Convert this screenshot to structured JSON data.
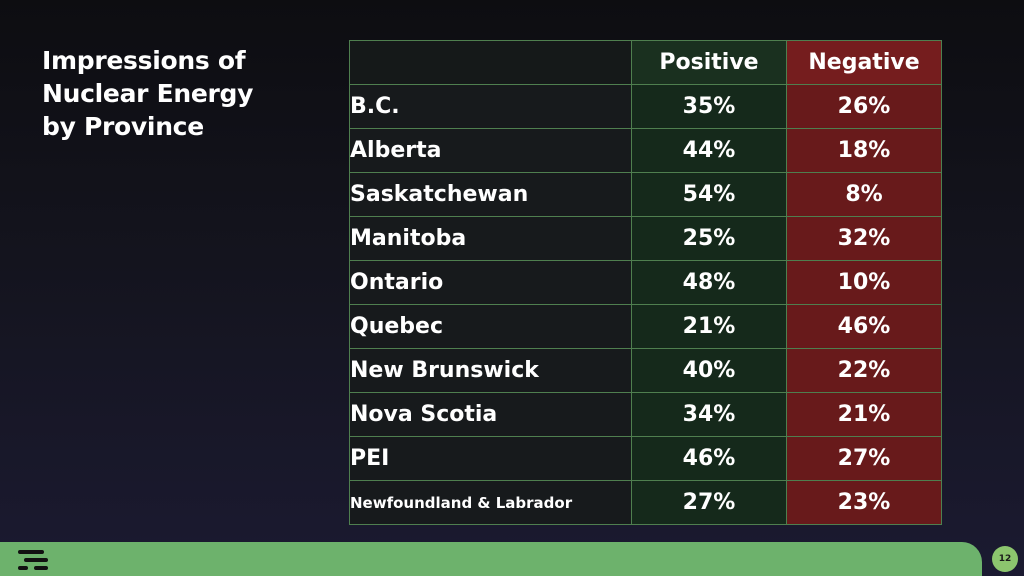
{
  "title": {
    "lines": [
      "Impressions of",
      "Nuclear Energy",
      "by Province"
    ]
  },
  "chart_data": {
    "type": "table",
    "title": "Impressions of Nuclear Energy by Province",
    "columns": [
      "Positive",
      "Negative"
    ],
    "rows": [
      {
        "province": "B.C.",
        "positive": "35%",
        "negative": "26%"
      },
      {
        "province": "Alberta",
        "positive": "44%",
        "negative": "18%"
      },
      {
        "province": "Saskatchewan",
        "positive": "54%",
        "negative": "8%"
      },
      {
        "province": "Manitoba",
        "positive": "25%",
        "negative": "32%"
      },
      {
        "province": "Ontario",
        "positive": "48%",
        "negative": "10%"
      },
      {
        "province": "Quebec",
        "positive": "21%",
        "negative": "46%"
      },
      {
        "province": "New Brunswick",
        "positive": "40%",
        "negative": "22%"
      },
      {
        "province": "Nova Scotia",
        "positive": "34%",
        "negative": "21%"
      },
      {
        "province": "PEI",
        "positive": "46%",
        "negative": "27%"
      },
      {
        "province": "Newfoundland & Labrador",
        "positive": "27%",
        "negative": "23%"
      }
    ],
    "colors": {
      "positive_column": "#15291b",
      "negative_column": "#681a1b",
      "border": "#4f7f4f"
    }
  },
  "footer": {
    "page_number": "12",
    "logo_icon": "brand-lines-icon",
    "bar_color": "#6db26c"
  }
}
